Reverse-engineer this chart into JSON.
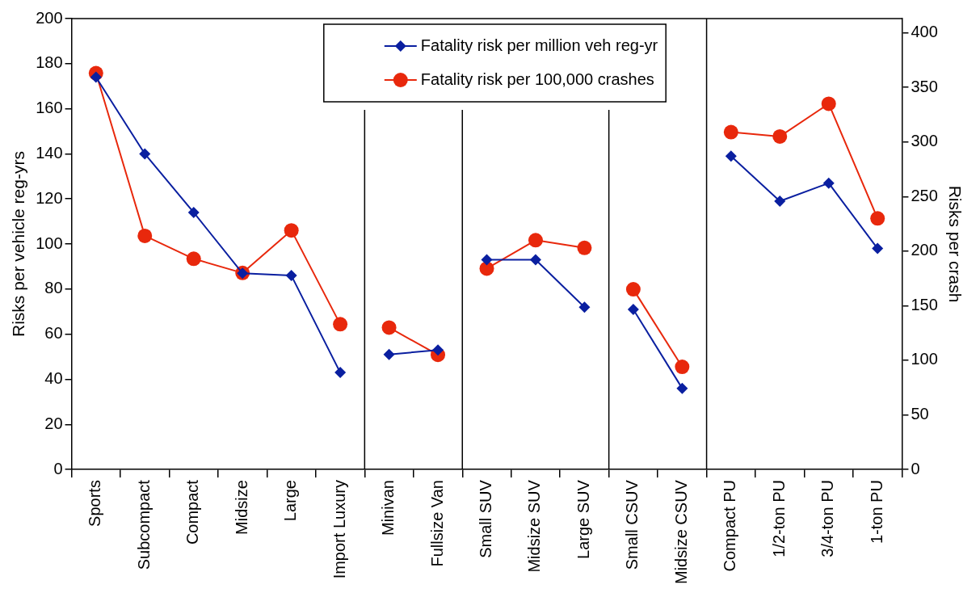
{
  "chart_data": {
    "type": "line",
    "categories": [
      "Sports",
      "Subcompact",
      "Compact",
      "Midsize",
      "Large",
      "Import Luxury",
      "Minivan",
      "Fullsize Van",
      "Small SUV",
      "Midsize SUV",
      "Large SUV",
      "Small CSUV",
      "Midsize CSUV",
      "Compact PU",
      "1/2-ton PU",
      "3/4-ton PU",
      "1-ton PU"
    ],
    "series": [
      {
        "name": "Fatality risk per million veh reg-yr",
        "color": "#0a1fa0",
        "marker": "diamond",
        "values": [
          174,
          140,
          114,
          87,
          86,
          43,
          51,
          53,
          93,
          93,
          72,
          71,
          36,
          139,
          119,
          127,
          98
        ]
      },
      {
        "name": "Fatality risk per 100,000 crashes",
        "color": "#e8280c",
        "marker": "circle",
        "axis": "y2",
        "values": [
          363,
          214,
          193,
          180,
          219,
          133,
          130,
          105,
          184,
          210,
          203,
          165,
          94,
          309,
          305,
          335,
          230
        ]
      }
    ],
    "ylabel": "Risks per vehicle reg-yrs",
    "y2label": "Risks per crash",
    "ylim": [
      0,
      200
    ],
    "yticks": [
      0,
      20,
      40,
      60,
      80,
      100,
      120,
      140,
      160,
      180,
      200
    ],
    "y2lim": [
      0,
      413
    ],
    "y2ticks": [
      0,
      50,
      100,
      150,
      200,
      250,
      300,
      350,
      400
    ],
    "legend": "top",
    "grid": false
  }
}
